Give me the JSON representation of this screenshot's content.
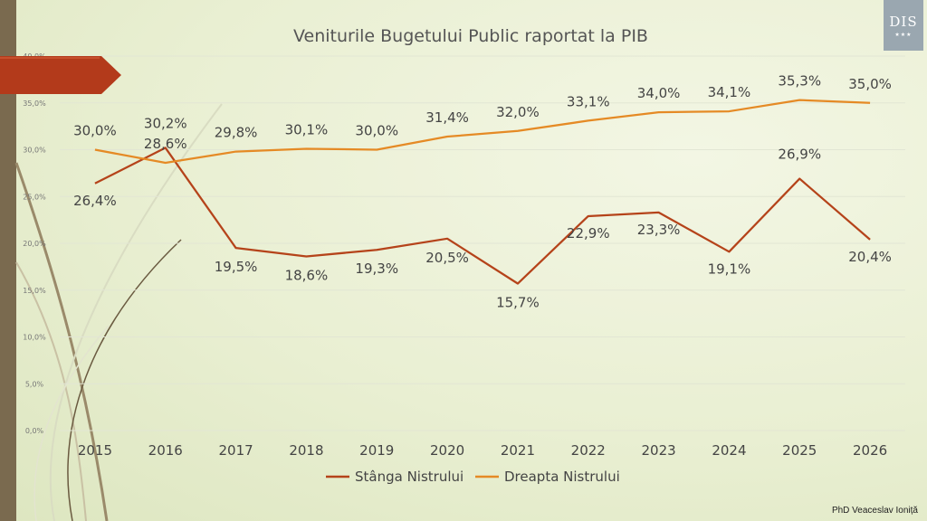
{
  "footer": {
    "author": "PhD Veaceslav Ioniță"
  },
  "logo": {
    "text": "DIS"
  },
  "colors": {
    "stanga": "#b5431a",
    "dreapta": "#e58a25",
    "grid": "#e2e6d4"
  },
  "chart_data": {
    "type": "line",
    "title": "Veniturile Bugetului Public raportat la PIB",
    "xlabel": "",
    "ylabel": "",
    "categories": [
      "2015",
      "2016",
      "2017",
      "2018",
      "2019",
      "2020",
      "2021",
      "2022",
      "2023",
      "2024",
      "2025",
      "2026"
    ],
    "ylim": [
      0,
      40
    ],
    "yticks": [
      0,
      5,
      10,
      15,
      20,
      25,
      30,
      35,
      40
    ],
    "ytick_labels": [
      "0,0%",
      "5,0%",
      "10,0%",
      "15,0%",
      "20,0%",
      "25,0%",
      "30,0%",
      "35,0%",
      "40,0%"
    ],
    "grid": true,
    "legend_position": "bottom",
    "series": [
      {
        "name": "Stânga Nistrului",
        "values": [
          26.4,
          30.2,
          19.5,
          18.6,
          19.3,
          20.5,
          15.7,
          22.9,
          23.3,
          19.1,
          26.9,
          20.4
        ],
        "labels": [
          "26,4%",
          "30,2%",
          "19,5%",
          "18,6%",
          "19,3%",
          "20,5%",
          "15,7%",
          "22,9%",
          "23,3%",
          "19,1%",
          "26,9%",
          "20,4%"
        ]
      },
      {
        "name": "Dreapta Nistrului",
        "values": [
          30.0,
          28.6,
          29.8,
          30.1,
          30.0,
          31.4,
          32.0,
          33.1,
          34.0,
          34.1,
          35.3,
          35.0
        ],
        "labels": [
          "30,0%",
          "28,6%",
          "29,8%",
          "30,1%",
          "30,0%",
          "31,4%",
          "32,0%",
          "33,1%",
          "34,0%",
          "34,1%",
          "35,3%",
          "35,0%"
        ]
      }
    ]
  }
}
